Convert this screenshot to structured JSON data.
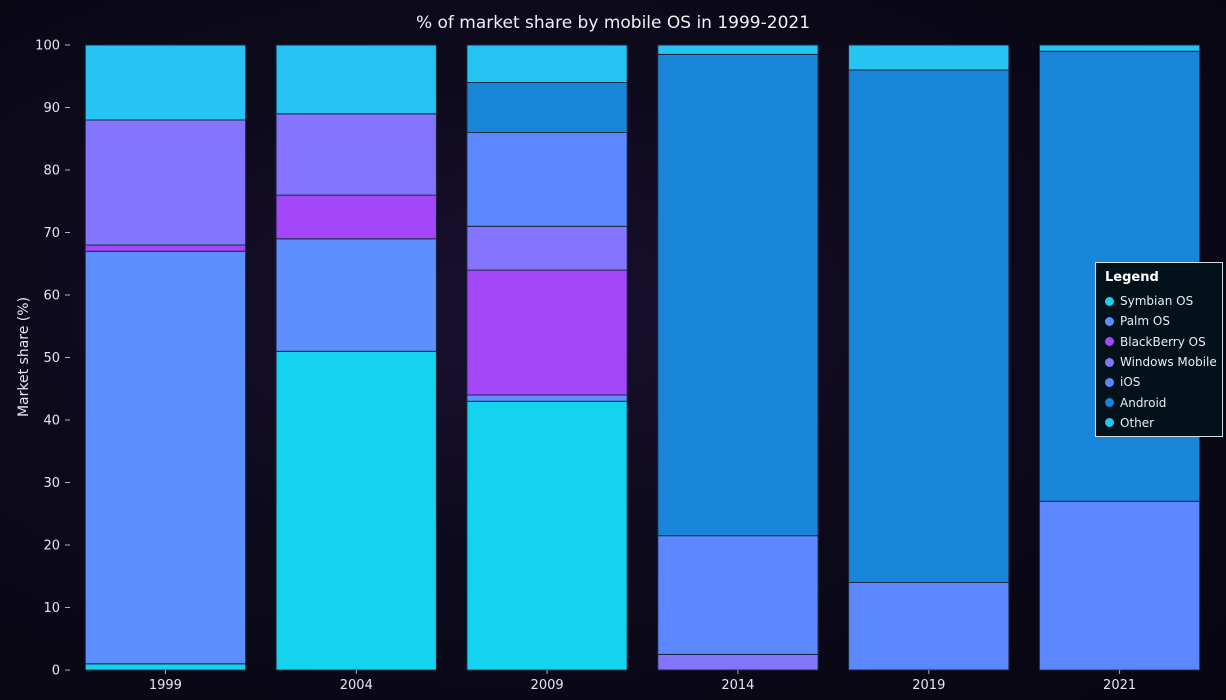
{
  "chart_data": {
    "type": "bar",
    "stacked": true,
    "title": "% of market share by mobile OS in 1999-2021",
    "xlabel": "",
    "ylabel": "Market share (%)",
    "ylim": [
      0,
      100
    ],
    "yticks": [
      0,
      10,
      20,
      30,
      40,
      50,
      60,
      70,
      80,
      90,
      100
    ],
    "categories": [
      "1999",
      "2004",
      "2009",
      "2014",
      "2019",
      "2021"
    ],
    "series": [
      {
        "name": "Symbian OS",
        "color": "#13d3ee",
        "values": [
          1,
          51,
          43,
          0,
          0,
          0
        ]
      },
      {
        "name": "Palm OS",
        "color": "#5d8ffe",
        "values": [
          66,
          18,
          1,
          0,
          0,
          0
        ]
      },
      {
        "name": "BlackBerry OS",
        "color": "#a347fb",
        "values": [
          1,
          7,
          20,
          0,
          0,
          0
        ]
      },
      {
        "name": "Windows Mobile",
        "color": "#8474fe",
        "values": [
          20,
          13,
          7,
          2.5,
          0,
          0
        ]
      },
      {
        "name": "iOS",
        "color": "#5b87ff",
        "values": [
          0,
          0,
          15,
          19,
          14,
          27
        ]
      },
      {
        "name": "Android",
        "color": "#1885d8",
        "values": [
          0,
          0,
          8,
          77,
          82,
          72
        ]
      },
      {
        "name": "Other",
        "color": "#25c4f3",
        "values": [
          12,
          11,
          6,
          1.5,
          4,
          1
        ]
      }
    ],
    "legend": {
      "title": "Legend",
      "position": "right"
    },
    "grid": false
  }
}
